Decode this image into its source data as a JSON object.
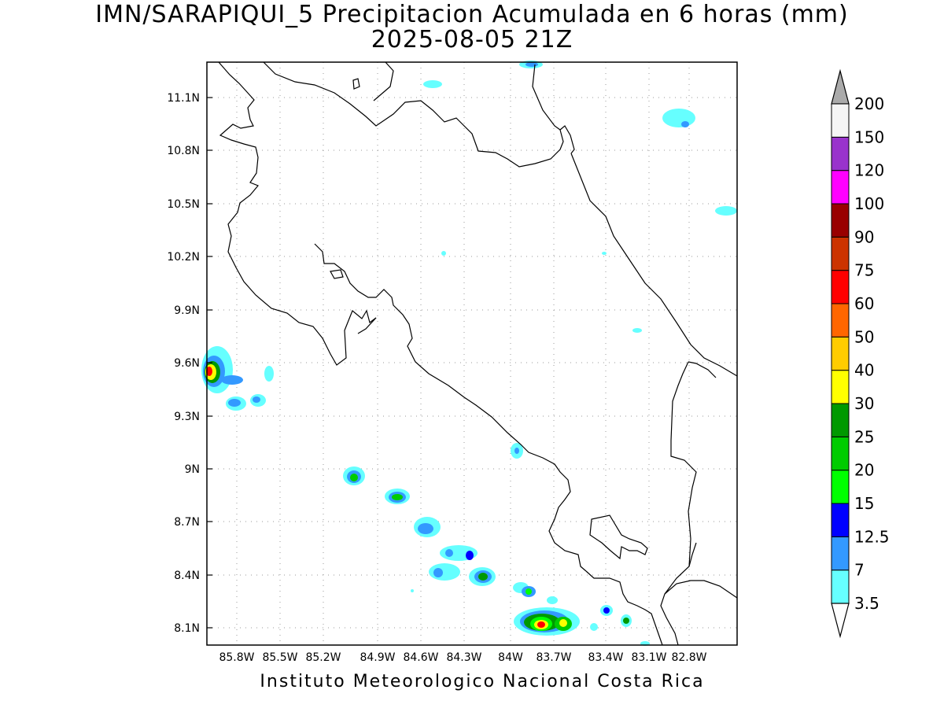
{
  "title": {
    "line1": "IMN/SARAPIQUI_5 Precipitacion Acumulada en 6 horas (mm)",
    "line2": "2025-08-05 21Z"
  },
  "footer": "Instituto Meteorologico Nacional Costa Rica",
  "map": {
    "lat_labels": [
      "11.1N",
      "10.8N",
      "10.5N",
      "10.2N",
      "9.9N",
      "9.6N",
      "9.3N",
      "9N",
      "8.7N",
      "8.4N",
      "8.1N"
    ],
    "lon_labels": [
      "85.8W",
      "85.5W",
      "85.2W",
      "84.9W",
      "84.6W",
      "84.3W",
      "84W",
      "83.7W",
      "83.4W",
      "83.1W",
      "82.8W"
    ],
    "grid": true
  },
  "colorbar": {
    "levels": [
      "3.5",
      "7",
      "12.5",
      "15",
      "20",
      "25",
      "30",
      "40",
      "50",
      "60",
      "75",
      "90",
      "100",
      "120",
      "150",
      "200"
    ],
    "colors": [
      "#66ffff",
      "#3399ff",
      "#0000ff",
      "#00ff00",
      "#00cc00",
      "#009900",
      "#ffff00",
      "#ffcc00",
      "#ff6600",
      "#ff0000",
      "#cc3300",
      "#990000",
      "#ff00ff",
      "#9933cc",
      "#f5f5f5"
    ],
    "over_color": "#aaaaaa",
    "under_color": "#ffffff"
  }
}
